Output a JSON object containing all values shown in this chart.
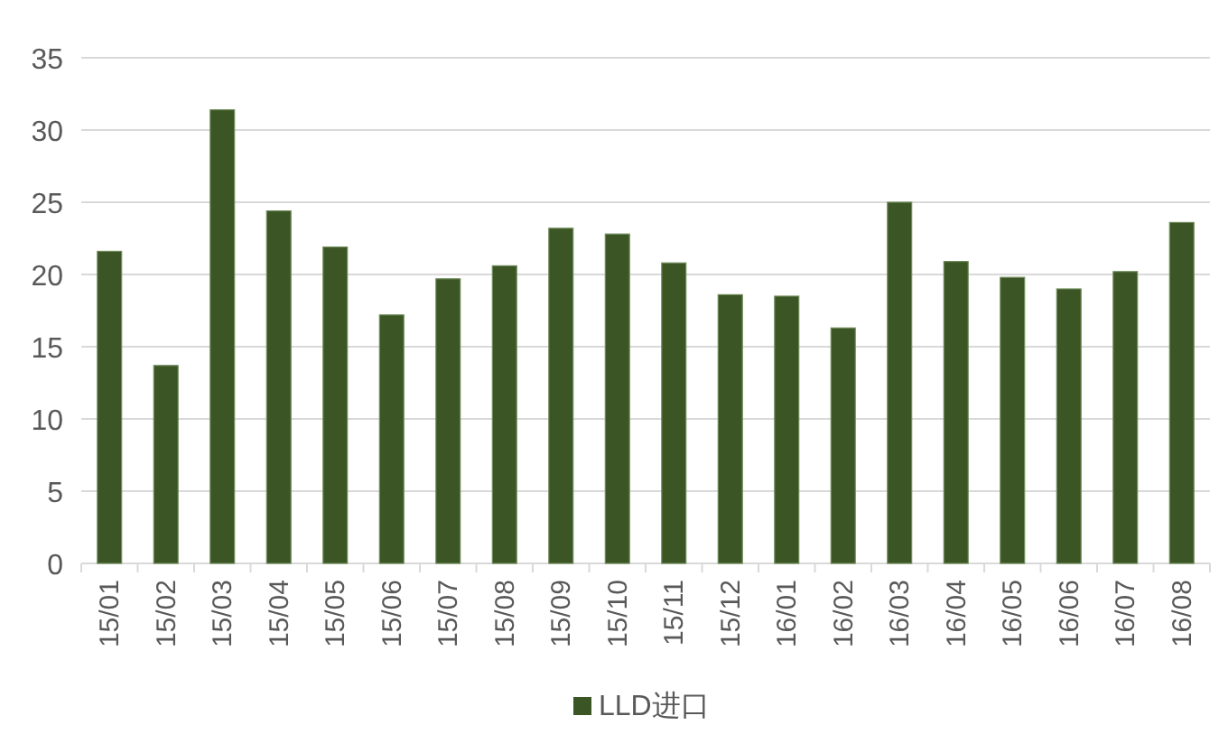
{
  "chart_data": {
    "type": "bar",
    "categories": [
      "15/01",
      "15/02",
      "15/03",
      "15/04",
      "15/05",
      "15/06",
      "15/07",
      "15/08",
      "15/09",
      "15/10",
      "15/11",
      "15/12",
      "16/01",
      "16/02",
      "16/03",
      "16/04",
      "16/05",
      "16/06",
      "16/07",
      "16/08"
    ],
    "series": [
      {
        "name": "LLD进口",
        "color": "#3b5524",
        "values": [
          21.6,
          13.7,
          31.4,
          24.4,
          21.9,
          17.2,
          19.7,
          20.6,
          23.2,
          22.8,
          20.8,
          18.6,
          18.5,
          16.3,
          25.0,
          20.9,
          19.8,
          19.0,
          20.2,
          23.6
        ]
      }
    ],
    "ylim": [
      0,
      35
    ],
    "yticks": [
      0,
      5,
      10,
      15,
      20,
      25,
      30,
      35
    ],
    "grid": "y",
    "legend": "bottom"
  }
}
